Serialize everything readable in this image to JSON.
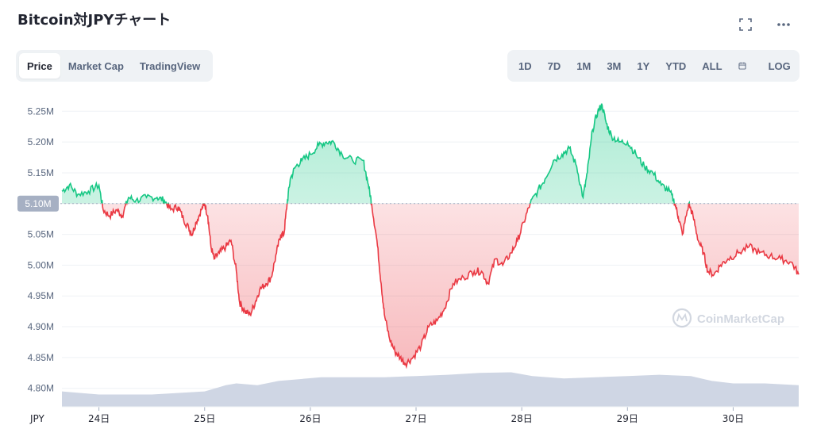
{
  "title": "Bitcoin対JPYチャート",
  "icons": {
    "fullscreen": "fullscreen-icon",
    "more": "more-icon",
    "calendar": "calendar-icon"
  },
  "tabs": [
    {
      "label": "Price",
      "active": true
    },
    {
      "label": "Market Cap",
      "active": false
    },
    {
      "label": "TradingView",
      "active": false
    }
  ],
  "ranges": [
    "1D",
    "7D",
    "1M",
    "3M",
    "1Y",
    "YTD",
    "ALL"
  ],
  "log_label": "LOG",
  "watermark": "CoinMarketCap",
  "colors": {
    "up": "#16c784",
    "down": "#ea3943",
    "volume": "#cfd6e4",
    "baseline_badge": "#a6b0c3"
  },
  "chart_data": {
    "type": "line",
    "y_ticks": [
      "4.80M",
      "4.85M",
      "4.90M",
      "4.95M",
      "5.00M",
      "5.05M",
      "5.10M",
      "5.15M",
      "5.20M",
      "5.25M"
    ],
    "ylim": [
      4.77,
      5.28
    ],
    "baseline": 5.1,
    "baseline_label": "5.10M",
    "x_unit_label": "JPY",
    "x_ticks": [
      {
        "x": 24,
        "label": "24日"
      },
      {
        "x": 25,
        "label": "25日"
      },
      {
        "x": 26,
        "label": "26日"
      },
      {
        "x": 27,
        "label": "27日"
      },
      {
        "x": 28,
        "label": "28日"
      },
      {
        "x": 29,
        "label": "29日"
      },
      {
        "x": 30,
        "label": "30日"
      }
    ],
    "xlim": [
      23.65,
      30.62
    ],
    "grid": true,
    "price": [
      [
        23.65,
        5.12
      ],
      [
        23.72,
        5.13
      ],
      [
        23.8,
        5.115
      ],
      [
        23.9,
        5.12
      ],
      [
        24.0,
        5.13
      ],
      [
        24.04,
        5.09
      ],
      [
        24.1,
        5.08
      ],
      [
        24.17,
        5.09
      ],
      [
        24.22,
        5.08
      ],
      [
        24.28,
        5.11
      ],
      [
        24.35,
        5.105
      ],
      [
        24.45,
        5.11
      ],
      [
        24.55,
        5.11
      ],
      [
        24.62,
        5.105
      ],
      [
        24.68,
        5.09
      ],
      [
        24.75,
        5.095
      ],
      [
        24.8,
        5.075
      ],
      [
        24.85,
        5.06
      ],
      [
        24.88,
        5.05
      ],
      [
        24.92,
        5.07
      ],
      [
        24.97,
        5.09
      ],
      [
        25.0,
        5.1
      ],
      [
        25.03,
        5.08
      ],
      [
        25.06,
        5.03
      ],
      [
        25.09,
        5.01
      ],
      [
        25.14,
        5.02
      ],
      [
        25.2,
        5.03
      ],
      [
        25.25,
        5.04
      ],
      [
        25.3,
        4.99
      ],
      [
        25.33,
        4.94
      ],
      [
        25.38,
        4.925
      ],
      [
        25.43,
        4.92
      ],
      [
        25.48,
        4.94
      ],
      [
        25.52,
        4.96
      ],
      [
        25.58,
        4.97
      ],
      [
        25.63,
        4.98
      ],
      [
        25.68,
        5.02
      ],
      [
        25.72,
        5.05
      ],
      [
        25.75,
        5.05
      ],
      [
        25.78,
        5.1
      ],
      [
        25.81,
        5.14
      ],
      [
        25.86,
        5.16
      ],
      [
        25.92,
        5.17
      ],
      [
        26.0,
        5.18
      ],
      [
        26.08,
        5.195
      ],
      [
        26.15,
        5.2
      ],
      [
        26.22,
        5.2
      ],
      [
        26.3,
        5.18
      ],
      [
        26.4,
        5.17
      ],
      [
        26.5,
        5.17
      ],
      [
        26.55,
        5.13
      ],
      [
        26.58,
        5.1
      ],
      [
        26.63,
        5.04
      ],
      [
        26.67,
        4.97
      ],
      [
        26.7,
        4.92
      ],
      [
        26.75,
        4.88
      ],
      [
        26.8,
        4.86
      ],
      [
        26.85,
        4.85
      ],
      [
        26.9,
        4.84
      ],
      [
        26.97,
        4.85
      ],
      [
        27.05,
        4.87
      ],
      [
        27.12,
        4.9
      ],
      [
        27.2,
        4.91
      ],
      [
        27.27,
        4.93
      ],
      [
        27.35,
        4.97
      ],
      [
        27.45,
        4.98
      ],
      [
        27.55,
        4.99
      ],
      [
        27.62,
        4.99
      ],
      [
        27.68,
        4.97
      ],
      [
        27.75,
        5.01
      ],
      [
        27.82,
        5.0
      ],
      [
        27.9,
        5.02
      ],
      [
        27.96,
        5.04
      ],
      [
        28.02,
        5.07
      ],
      [
        28.08,
        5.1
      ],
      [
        28.15,
        5.12
      ],
      [
        28.22,
        5.14
      ],
      [
        28.3,
        5.17
      ],
      [
        28.38,
        5.18
      ],
      [
        28.45,
        5.19
      ],
      [
        28.52,
        5.16
      ],
      [
        28.58,
        5.11
      ],
      [
        28.62,
        5.15
      ],
      [
        28.67,
        5.22
      ],
      [
        28.72,
        5.25
      ],
      [
        28.76,
        5.26
      ],
      [
        28.8,
        5.23
      ],
      [
        28.85,
        5.21
      ],
      [
        28.92,
        5.2
      ],
      [
        29.0,
        5.2
      ],
      [
        29.08,
        5.18
      ],
      [
        29.16,
        5.16
      ],
      [
        29.24,
        5.15
      ],
      [
        29.32,
        5.13
      ],
      [
        29.4,
        5.12
      ],
      [
        29.45,
        5.1
      ],
      [
        29.48,
        5.08
      ],
      [
        29.52,
        5.05
      ],
      [
        29.58,
        5.1
      ],
      [
        29.62,
        5.08
      ],
      [
        29.67,
        5.04
      ],
      [
        29.72,
        5.02
      ],
      [
        29.76,
        4.99
      ],
      [
        29.82,
        4.985
      ],
      [
        29.88,
        5.0
      ],
      [
        29.95,
        5.01
      ],
      [
        30.05,
        5.02
      ],
      [
        30.15,
        5.03
      ],
      [
        30.25,
        5.02
      ],
      [
        30.35,
        5.015
      ],
      [
        30.45,
        5.01
      ],
      [
        30.55,
        5.005
      ],
      [
        30.62,
        4.985
      ]
    ],
    "volume": [
      [
        23.65,
        4.795
      ],
      [
        24.0,
        4.79
      ],
      [
        24.5,
        4.79
      ],
      [
        25.0,
        4.795
      ],
      [
        25.1,
        4.8
      ],
      [
        25.2,
        4.805
      ],
      [
        25.3,
        4.808
      ],
      [
        25.5,
        4.805
      ],
      [
        25.7,
        4.812
      ],
      [
        25.9,
        4.815
      ],
      [
        26.1,
        4.818
      ],
      [
        26.4,
        4.818
      ],
      [
        26.7,
        4.818
      ],
      [
        27.0,
        4.82
      ],
      [
        27.3,
        4.822
      ],
      [
        27.6,
        4.825
      ],
      [
        27.9,
        4.826
      ],
      [
        28.1,
        4.82
      ],
      [
        28.4,
        4.816
      ],
      [
        28.7,
        4.818
      ],
      [
        29.0,
        4.82
      ],
      [
        29.3,
        4.822
      ],
      [
        29.6,
        4.82
      ],
      [
        29.8,
        4.812
      ],
      [
        30.0,
        4.808
      ],
      [
        30.3,
        4.808
      ],
      [
        30.62,
        4.805
      ]
    ]
  }
}
